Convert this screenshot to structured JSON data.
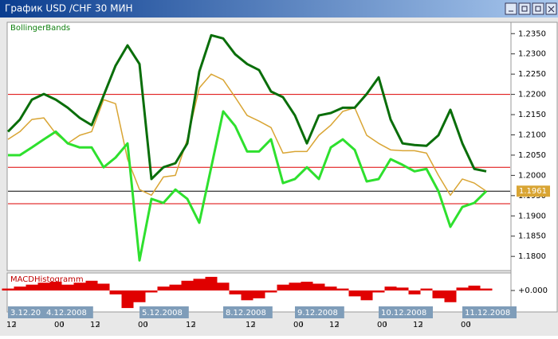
{
  "window_title": "График USD /CHF  30 МИН",
  "chart_data": [
    {
      "type": "line",
      "title": "BollingerBands",
      "categories": [
        "12",
        null,
        null,
        null,
        "00",
        null,
        null,
        "12",
        null,
        null,
        null,
        "00",
        null,
        null,
        null,
        "12",
        null,
        null,
        null,
        null,
        "12",
        null,
        null,
        null,
        "00",
        null,
        null,
        "12",
        null,
        null,
        null,
        "00",
        null,
        null,
        "12",
        null,
        null,
        null,
        "00",
        null,
        null
      ],
      "dates": [
        "3.12.20",
        null,
        null,
        "4.12.2008",
        null,
        null,
        null,
        null,
        null,
        null,
        null,
        "5.12.2008",
        null,
        null,
        null,
        null,
        null,
        null,
        "8.12.2008",
        null,
        null,
        null,
        null,
        null,
        "9.12.2008",
        null,
        null,
        null,
        null,
        null,
        null,
        "10.12.2008",
        null,
        null,
        null,
        null,
        null,
        null,
        "11.12.2008",
        null,
        null
      ],
      "series": [
        {
          "color": "#d9a534",
          "values": [
            1.2089,
            1.2108,
            1.2138,
            1.2142,
            1.2103,
            1.2079,
            1.2099,
            1.2108,
            1.2187,
            1.2177,
            1.204,
            1.1965,
            1.1951,
            1.1996,
            1.2,
            1.2089,
            1.2216,
            1.225,
            1.2236,
            1.2193,
            1.2148,
            1.2134,
            1.2118,
            1.2055,
            1.2059,
            1.2059,
            1.2099,
            1.2124,
            1.2158,
            1.2167,
            1.2099,
            1.2079,
            1.2063,
            1.2061,
            1.2061,
            1.2055,
            1.2,
            1.1951,
            1.1991,
            1.1981,
            1.1961
          ]
        },
        {
          "color": "#0a6e0a",
          "values": [
            1.2108,
            1.2138,
            1.2187,
            1.2201,
            1.2187,
            1.2167,
            1.2142,
            1.2124,
            1.2197,
            1.2271,
            1.2321,
            1.2275,
            1.1991,
            1.202,
            1.203,
            1.2079,
            1.2256,
            1.2346,
            1.2338,
            1.2299,
            1.2275,
            1.226,
            1.2207,
            1.2193,
            1.2148,
            1.2079,
            1.2148,
            1.2154,
            1.2167,
            1.2167,
            1.2201,
            1.2242,
            1.2138,
            1.2079,
            1.2075,
            1.2073,
            1.2099,
            1.2162,
            1.2079,
            1.2016,
            1.201
          ]
        },
        {
          "color": "#2ee02e",
          "values": [
            1.205,
            1.205,
            1.2069,
            1.2089,
            1.2108,
            1.2079,
            1.2069,
            1.2069,
            1.202,
            1.2044,
            1.2079,
            1.179,
            1.1942,
            1.1932,
            1.1965,
            1.1942,
            1.1883,
            1.202,
            1.2158,
            1.2122,
            1.2059,
            1.2059,
            1.2089,
            1.1981,
            1.1991,
            1.202,
            1.1991,
            1.2069,
            1.2089,
            1.2063,
            1.1985,
            1.1991,
            1.204,
            1.2026,
            1.201,
            1.2016,
            1.1961,
            1.1873,
            1.1922,
            1.1932,
            1.1961
          ]
        }
      ],
      "levels": [
        1.22,
        1.202,
        1.193
      ],
      "level_color": "#dd0000",
      "last_price": 1.1961,
      "ylim": [
        1.1765,
        1.2378
      ],
      "yticks": [
        {
          "value": 1.235,
          "label": "1.2350"
        },
        {
          "value": 1.23,
          "label": "1.2300"
        },
        {
          "value": 1.225,
          "label": "1.2250"
        },
        {
          "value": 1.22,
          "label": "1.2200"
        },
        {
          "value": 1.215,
          "label": "1.2150"
        },
        {
          "value": 1.21,
          "label": "1.2100"
        },
        {
          "value": 1.205,
          "label": "1.2050"
        },
        {
          "value": 1.2,
          "label": "1.2000"
        },
        {
          "value": 1.195,
          "label": "1.1950"
        },
        {
          "value": 1.19,
          "label": "1.1900"
        },
        {
          "value": 1.185,
          "label": "1.1850"
        },
        {
          "value": 1.18,
          "label": "1.1800"
        }
      ]
    },
    {
      "type": "bar",
      "title": "MACDHistogramm",
      "color": "#e00000",
      "values": [
        0.0002,
        0.0004,
        0.0006,
        0.0008,
        0.0009,
        0.0006,
        0.0008,
        0.001,
        0.0007,
        -0.0004,
        -0.0018,
        -0.0012,
        -0.0002,
        0.0004,
        0.0006,
        0.001,
        0.0012,
        0.0014,
        0.0008,
        -0.0004,
        -0.001,
        -0.0008,
        -0.0002,
        0.0006,
        0.0008,
        0.0009,
        0.0007,
        0.0004,
        0.0002,
        -0.0006,
        -0.001,
        -0.0002,
        0.0004,
        0.0003,
        -0.0004,
        0.0002,
        -0.0008,
        -0.0012,
        0.0003,
        0.0005,
        0.0002
      ],
      "ylim": [
        -0.0022,
        0.0018
      ],
      "yticks": [
        {
          "value": 0,
          "label": "+0.000"
        }
      ]
    }
  ]
}
